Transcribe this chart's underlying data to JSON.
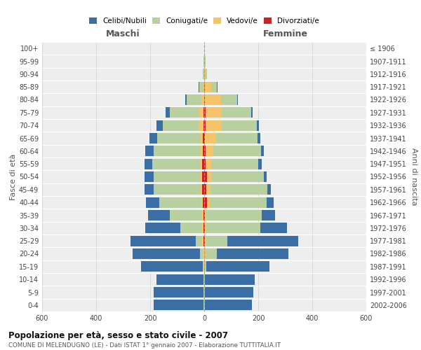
{
  "age_groups_bottom_to_top": [
    "0-4",
    "5-9",
    "10-14",
    "15-19",
    "20-24",
    "25-29",
    "30-34",
    "35-39",
    "40-44",
    "45-49",
    "50-54",
    "55-59",
    "60-64",
    "65-69",
    "70-74",
    "75-79",
    "80-84",
    "85-89",
    "90-94",
    "95-99",
    "100+"
  ],
  "birth_years_bottom_to_top": [
    "2002-2006",
    "1997-2001",
    "1992-1996",
    "1987-1991",
    "1982-1986",
    "1977-1981",
    "1972-1976",
    "1967-1971",
    "1962-1966",
    "1957-1961",
    "1952-1956",
    "1947-1951",
    "1942-1946",
    "1937-1941",
    "1932-1936",
    "1927-1931",
    "1922-1926",
    "1917-1921",
    "1912-1916",
    "1907-1911",
    "≤ 1906"
  ],
  "males": {
    "celibi": [
      185,
      185,
      175,
      230,
      250,
      240,
      130,
      80,
      50,
      32,
      32,
      30,
      30,
      30,
      25,
      15,
      5,
      2,
      1,
      0,
      0
    ],
    "coniugati": [
      2,
      2,
      2,
      2,
      10,
      25,
      80,
      120,
      155,
      175,
      175,
      175,
      175,
      160,
      130,
      110,
      55,
      15,
      4,
      2,
      1
    ],
    "vedovi": [
      0,
      0,
      0,
      2,
      5,
      5,
      5,
      5,
      5,
      5,
      5,
      8,
      8,
      8,
      20,
      15,
      10,
      3,
      1,
      0,
      0
    ],
    "divorziati": [
      0,
      0,
      0,
      0,
      1,
      2,
      3,
      3,
      5,
      8,
      8,
      8,
      5,
      5,
      2,
      2,
      1,
      0,
      0,
      0,
      0
    ]
  },
  "females": {
    "nubili": [
      175,
      180,
      185,
      235,
      265,
      260,
      100,
      50,
      28,
      15,
      12,
      12,
      10,
      10,
      8,
      5,
      3,
      2,
      1,
      0,
      0
    ],
    "coniugate": [
      2,
      2,
      2,
      5,
      40,
      80,
      200,
      205,
      210,
      210,
      195,
      175,
      175,
      155,
      130,
      110,
      60,
      20,
      5,
      3,
      1
    ],
    "vedove": [
      0,
      0,
      0,
      2,
      5,
      5,
      5,
      5,
      10,
      15,
      15,
      20,
      30,
      40,
      60,
      60,
      60,
      25,
      5,
      2,
      0
    ],
    "divorziate": [
      0,
      0,
      0,
      0,
      1,
      2,
      2,
      3,
      10,
      8,
      10,
      5,
      5,
      3,
      5,
      5,
      2,
      2,
      0,
      0,
      0
    ]
  },
  "colors": {
    "celibi": "#3a6ea5",
    "coniugati": "#b8cfa0",
    "vedovi": "#f5c469",
    "divorziati": "#cc2222"
  },
  "xlim": 600,
  "title": "Popolazione per età, sesso e stato civile - 2007",
  "subtitle": "COMUNE DI MELENDUGNO (LE) - Dati ISTAT 1° gennaio 2007 - Elaborazione TUTTITALIA.IT",
  "ylabel_left": "Fasce di età",
  "ylabel_right": "Anni di nascita",
  "xlabel_left": "Maschi",
  "xlabel_right": "Femmine",
  "bg_color": "#eeeeee"
}
